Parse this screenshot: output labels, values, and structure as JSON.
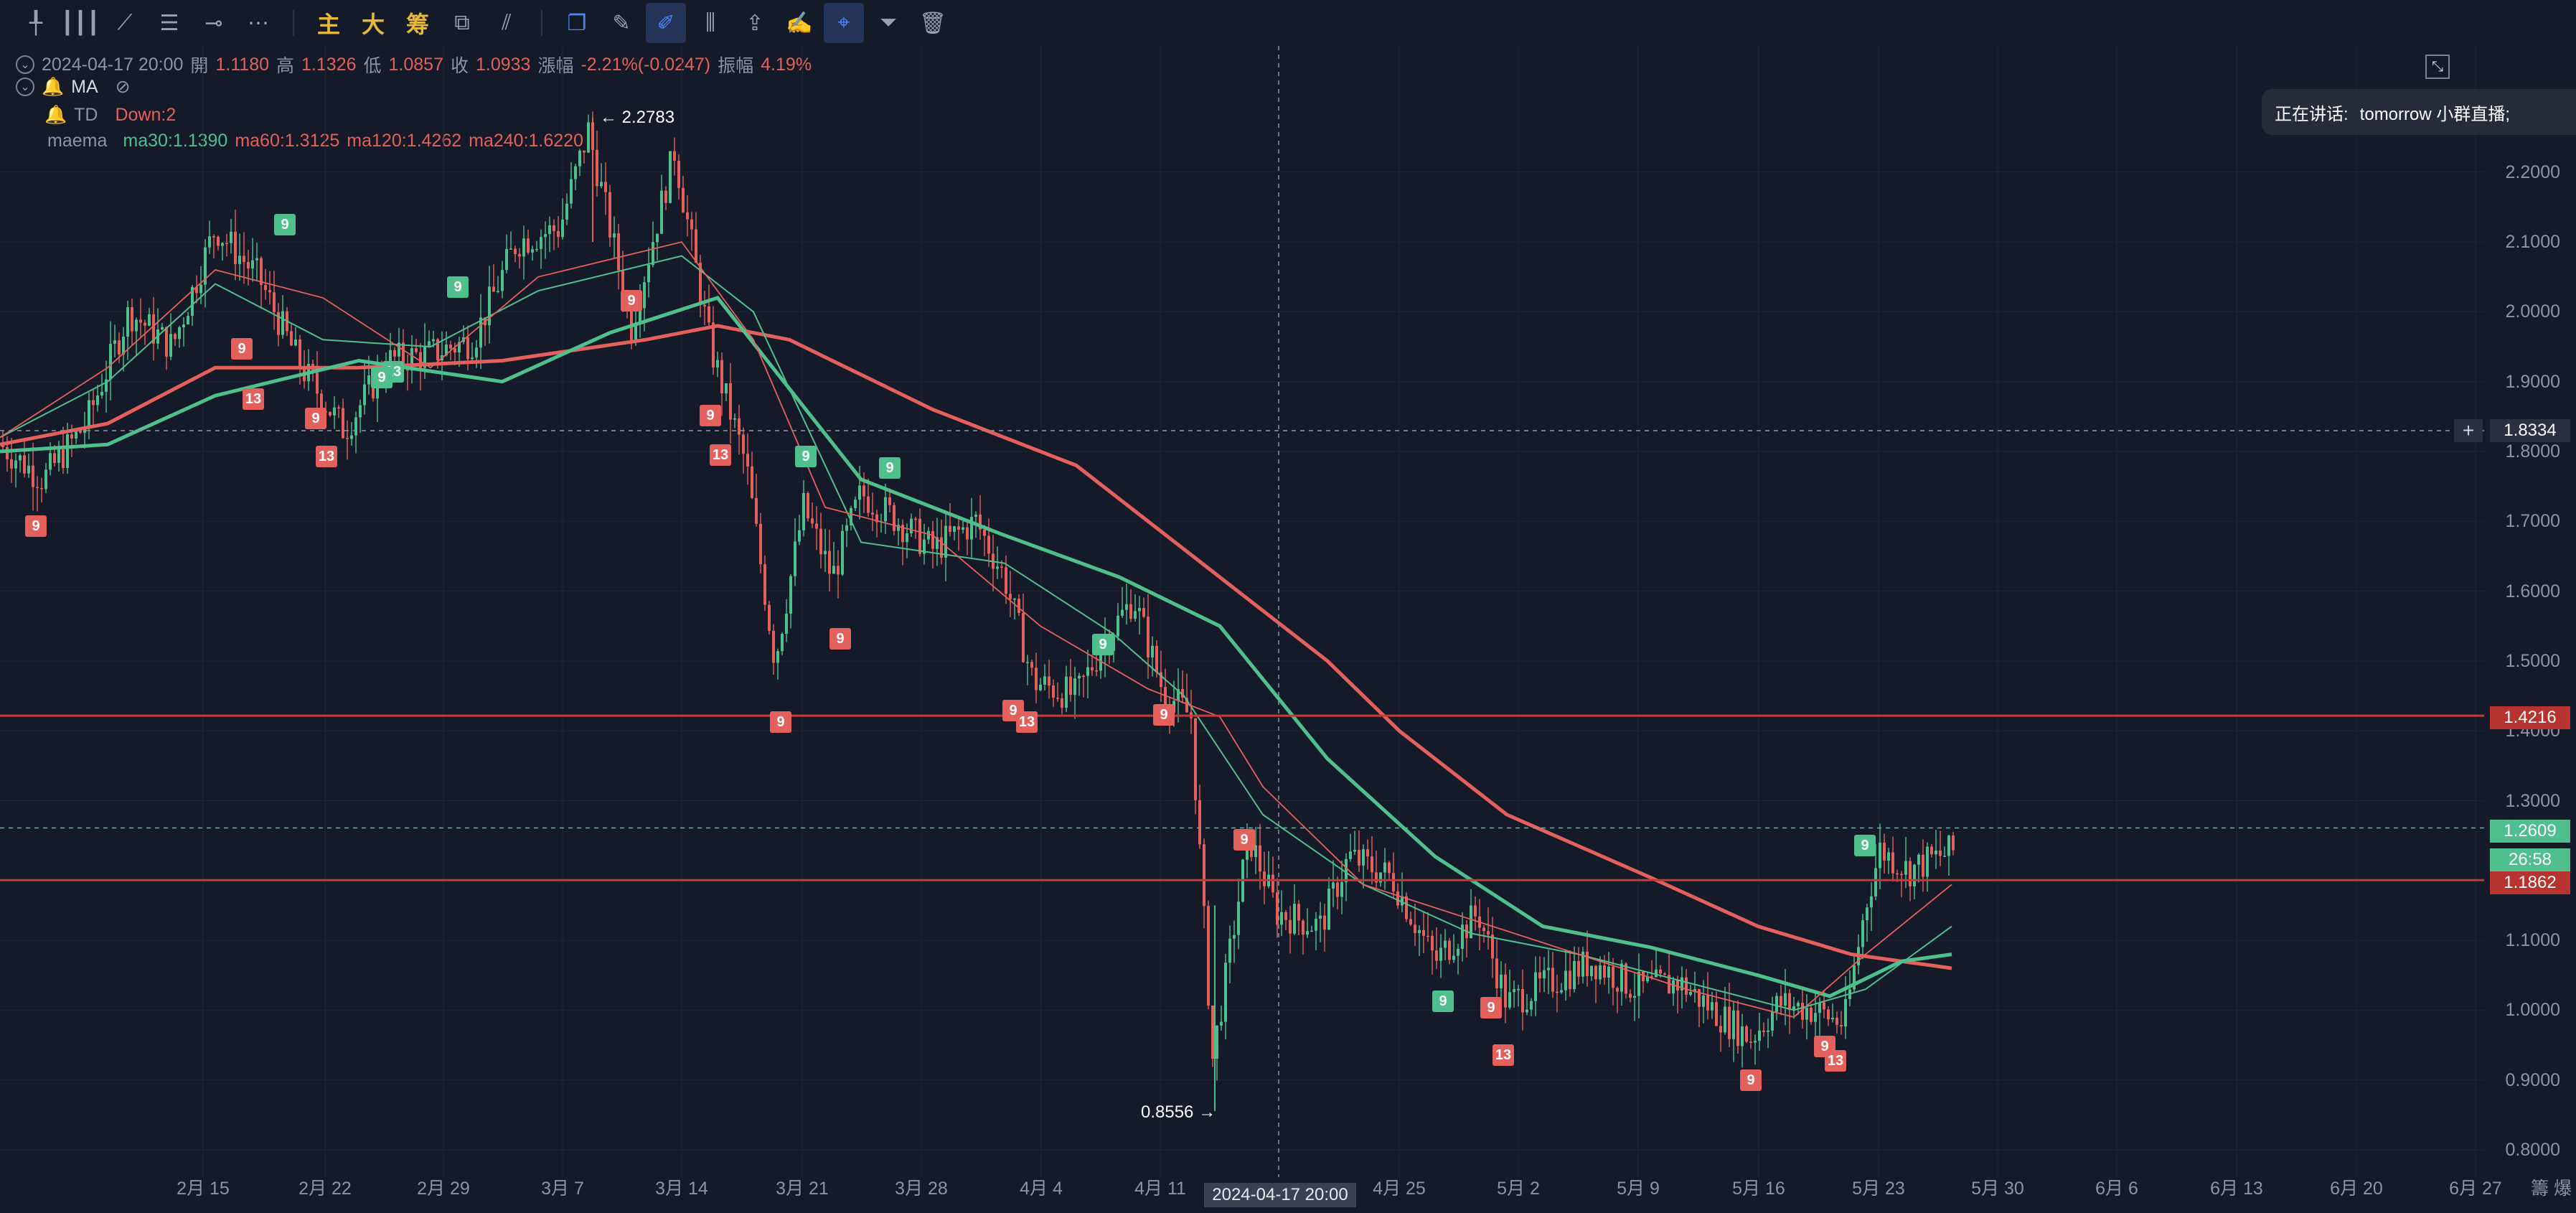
{
  "toolbar": {
    "icons": [
      "cursor-icon",
      "vertical-lines-icon",
      "trend-line-icon",
      "fib-icon",
      "horizontal-ray-icon",
      "more-icon"
    ],
    "gold_labels": [
      "主",
      "大",
      "筹"
    ],
    "tools": [
      "pattern-icon",
      "indicator-icon",
      "copy-icon",
      "ruler-icon",
      "draw-pen-icon",
      "candles-icon",
      "share-icon",
      "note-icon",
      "magnet-icon",
      "filter-icon",
      "trash-icon"
    ]
  },
  "ohlc": {
    "datetime": "2024-04-17 20:00",
    "open_label": "開",
    "open": "1.1180",
    "high_label": "高",
    "high": "1.1326",
    "low_label": "低",
    "low": "1.0857",
    "close_label": "收",
    "close": "1.0933",
    "change_label": "漲幅",
    "change": "-2.21%(-0.0247)",
    "amp_label": "振幅",
    "amp": "4.19%"
  },
  "indicators": {
    "ma_name": "MA",
    "td_name": "TD",
    "td_value": "Down:2",
    "maema_name": "maema",
    "ma30": "ma30:1.1390",
    "ma60": "ma60:1.3125",
    "ma120": "ma120:1.4262",
    "ma240": "ma240:1.6220"
  },
  "notice": {
    "label": "正在讲话:",
    "text": "tomorrow 小群直播;"
  },
  "price_axis": [
    "2.2000",
    "2.1000",
    "2.0000",
    "1.9000",
    "1.8000",
    "1.7000",
    "1.6000",
    "1.5000",
    "1.4000",
    "1.3000",
    "1.1000",
    "1.0000",
    "0.9000",
    "0.8000"
  ],
  "date_axis": [
    "2月 15",
    "2月 22",
    "2月 29",
    "3月 7",
    "3月 14",
    "3月 21",
    "3月 28",
    "4月 4",
    "4月 11",
    "4月 25",
    "5月 2",
    "5月 9",
    "5月 16",
    "5月 23",
    "5月 30",
    "6月 6",
    "6月 13",
    "6月 20",
    "6月 27"
  ],
  "crosshair": {
    "price": "1.8334",
    "date": "2024-04-17 20:00"
  },
  "price_tags": {
    "level_high": "1.4216",
    "current": "1.2609",
    "countdown": "26:58",
    "level_low": "1.1862"
  },
  "annotations": {
    "max": "← 2.2783",
    "min": "0.8556 →"
  },
  "corner": {
    "text": "籌 爆"
  },
  "colors": {
    "bg": "#151a28",
    "up": "#4fbf8d",
    "down": "#e4605d",
    "hline": "#c23b38"
  },
  "td_counts": [
    {
      "t": "9",
      "c": "r"
    },
    {
      "t": "9",
      "c": "g"
    },
    {
      "t": "9",
      "c": "r"
    },
    {
      "t": "13",
      "c": "r"
    },
    {
      "t": "9",
      "c": "r"
    },
    {
      "t": "13",
      "c": "r"
    },
    {
      "t": "9",
      "c": "g"
    },
    {
      "t": "13",
      "c": "g"
    },
    {
      "t": "9",
      "c": "g"
    },
    {
      "t": "9",
      "c": "r"
    },
    {
      "t": "9",
      "c": "r"
    },
    {
      "t": "13",
      "c": "r"
    },
    {
      "t": "9",
      "c": "g"
    },
    {
      "t": "9",
      "c": "r"
    },
    {
      "t": "9",
      "c": "g"
    },
    {
      "t": "9",
      "c": "r"
    },
    {
      "t": "9",
      "c": "r"
    },
    {
      "t": "13",
      "c": "r"
    },
    {
      "t": "9",
      "c": "g"
    },
    {
      "t": "9",
      "c": "r"
    },
    {
      "t": "9",
      "c": "g"
    },
    {
      "t": "9",
      "c": "r"
    },
    {
      "t": "9",
      "c": "r"
    },
    {
      "t": "13",
      "c": "r"
    },
    {
      "t": "9",
      "c": "r"
    },
    {
      "t": "9",
      "c": "r"
    },
    {
      "t": "13",
      "c": "r"
    },
    {
      "t": "9",
      "c": "g"
    }
  ]
}
